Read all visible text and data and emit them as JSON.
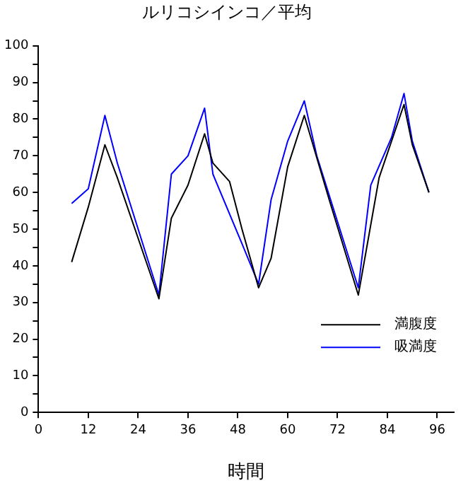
{
  "chart_data": {
    "type": "line",
    "title": "ルリコシインコ／平均",
    "xlabel": "時間",
    "xlim": [
      0,
      100
    ],
    "xticks": [
      0,
      12,
      24,
      36,
      48,
      60,
      72,
      84,
      96
    ],
    "ylim": [
      0,
      100
    ],
    "yticks": [
      0,
      {
        "value": 5,
        "label": null
      },
      10,
      {
        "value": 15,
        "label": null
      },
      20,
      {
        "value": 25,
        "label": null
      },
      30,
      {
        "value": 35,
        "label": null
      },
      40,
      {
        "value": 45,
        "label": null
      },
      50,
      {
        "value": 55,
        "label": null
      },
      60,
      {
        "value": 65,
        "label": null
      },
      70,
      {
        "value": 75,
        "label": null
      },
      80,
      {
        "value": 85,
        "label": null
      },
      90,
      {
        "value": 95,
        "label": null
      },
      100
    ],
    "grid": false,
    "legend": "bottom right",
    "marker": "none",
    "line_style": "solid",
    "series": [
      {
        "name": "満腹度",
        "color": "#000000",
        "x": [
          8,
          12,
          16,
          19,
          29,
          32,
          36,
          40,
          42,
          46,
          49,
          53,
          56,
          60,
          64,
          70,
          77,
          82,
          88,
          90,
          94
        ],
        "values": [
          41,
          56,
          73,
          64,
          31,
          53,
          62,
          76,
          68,
          63,
          50,
          34,
          42,
          67,
          81,
          58,
          32,
          64,
          84,
          73,
          60
        ]
      },
      {
        "name": "吸満度",
        "color": "#0000ff",
        "x": [
          8,
          12,
          16,
          19,
          29,
          32,
          36,
          40,
          42,
          49,
          53,
          56,
          60,
          64,
          67,
          77,
          80,
          85,
          88,
          90,
          94
        ],
        "values": [
          57,
          61,
          81,
          68,
          32,
          65,
          70,
          83,
          65,
          46,
          35,
          58,
          74,
          85,
          70,
          34,
          62,
          75,
          87,
          74,
          60
        ]
      }
    ]
  }
}
